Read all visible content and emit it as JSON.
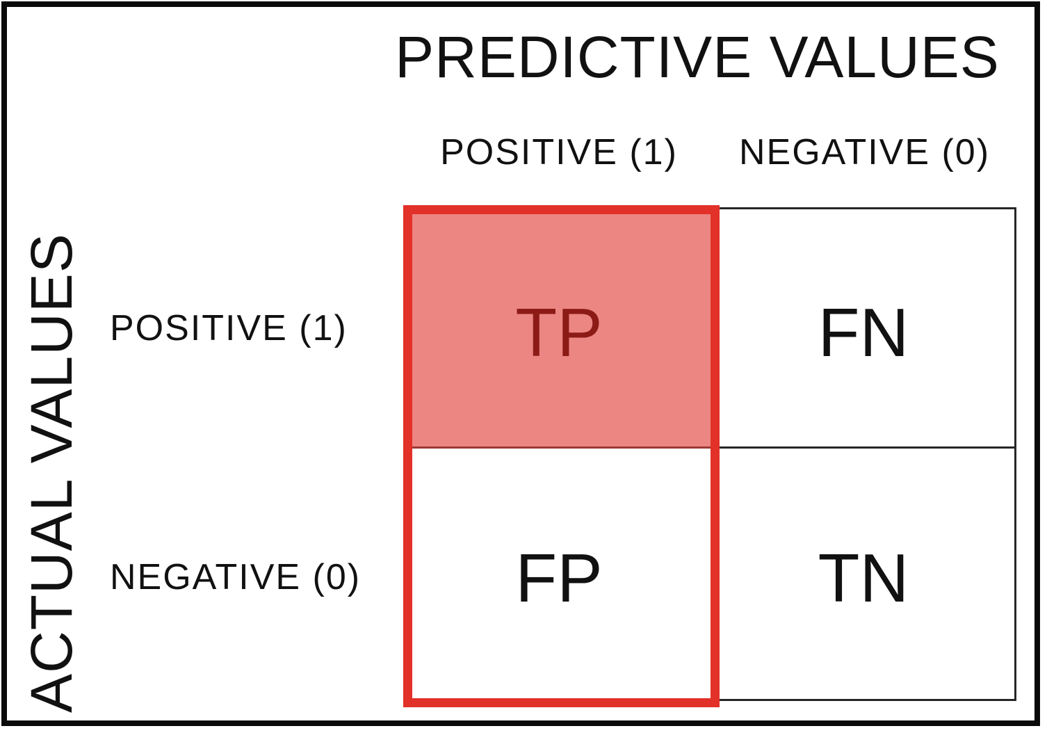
{
  "title": "PREDICTIVE VALUES",
  "left_axis_label": "ACTUAL VALUES",
  "columns": [
    {
      "label": "POSITIVE (1)"
    },
    {
      "label": "NEGATIVE (0)"
    }
  ],
  "rows": [
    {
      "label": "POSITIVE (1)"
    },
    {
      "label": "NEGATIVE (0)"
    }
  ],
  "cells": {
    "tp": "TP",
    "fn": "FN",
    "fp": "FP",
    "tn": "TN"
  },
  "colors": {
    "highlight_fill": "#ec8683",
    "highlight_outline": "#e23128",
    "highlight_text": "#8c1b16",
    "highlight_divider": "#9c3a35",
    "grid_line": "#262626",
    "text": "#111111",
    "background": "#ffffff",
    "frame_border": "#0a0a0a"
  }
}
